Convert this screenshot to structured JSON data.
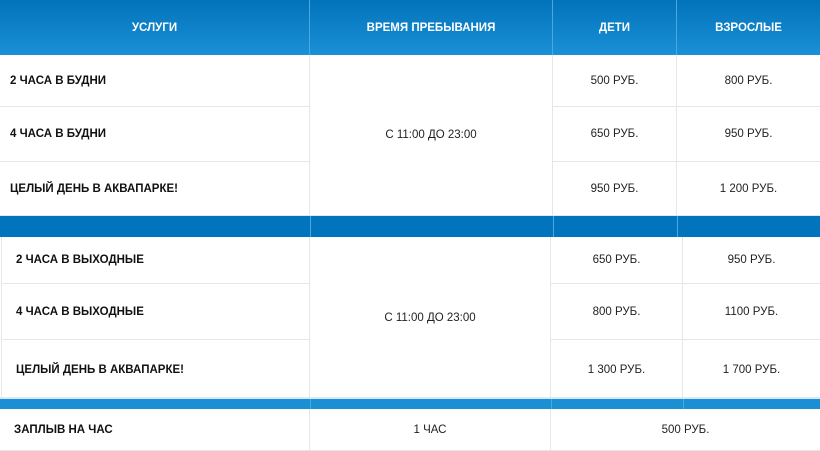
{
  "header": [
    "УСЛУГИ",
    "ВРЕМЯ ПРЕБЫВАНИЯ",
    "ДЕТИ",
    "ВЗРОСЛЫЕ"
  ],
  "weekday": {
    "time": "С 11:00 ДО 23:00",
    "rows": [
      {
        "service": "2 ЧАСА В БУДНИ",
        "kids": "500 РУБ.",
        "adults": "800 РУБ."
      },
      {
        "service": "4 ЧАСА В БУДНИ",
        "kids": "650 РУБ.",
        "adults": "950 РУБ."
      },
      {
        "service": "ЦЕЛЫЙ ДЕНЬ В АКВАПАРКЕ!",
        "kids": "950 РУБ.",
        "adults": "1 200 РУБ."
      }
    ]
  },
  "weekend": {
    "time": "С 11:00 ДО 23:00",
    "rows": [
      {
        "service": "2 ЧАСА В ВЫХОДНЫЕ",
        "kids": "650 РУБ.",
        "adults": "950 РУБ."
      },
      {
        "service": "4 ЧАСА В ВЫХОДНЫЕ",
        "kids": "800 РУБ.",
        "adults": "1100 РУБ."
      },
      {
        "service": "ЦЕЛЫЙ ДЕНЬ В АКВАПАРКЕ!",
        "kids": "1 300 РУБ.",
        "adults": "1 700 РУБ."
      }
    ]
  },
  "swim": {
    "service": "ЗАПЛЫВ НА ЧАС",
    "time": "1 ЧАС",
    "price": "500 РУБ."
  },
  "colors": {
    "header": "#0273bb",
    "band1": "#0273bd",
    "band2": "#1a8fd4"
  }
}
